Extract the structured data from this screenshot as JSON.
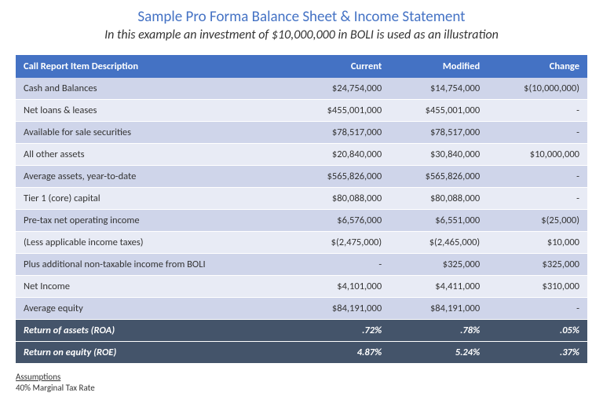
{
  "title": "Sample Pro Forma Balance Sheet & Income Statement",
  "subtitle": "In this example an investment of $10,000,000 in BOLI is used as an illustration",
  "colors": {
    "title_color": "#4472c4",
    "header_bg": "#4472c4",
    "header_text": "#ffffff",
    "band_a": "#cfd5ea",
    "band_b": "#e8ebf5",
    "emph_bg": "#44546a",
    "emph_text": "#ffffff",
    "body_text": "#333333",
    "page_bg": "#ffffff"
  },
  "typography": {
    "title_fontsize": 19,
    "subtitle_fontsize": 16,
    "table_fontsize": 12.5,
    "footnote_fontsize": 11,
    "font_family": "Calibri"
  },
  "table": {
    "type": "table",
    "columns": [
      "Call Report Item Description",
      "Current",
      "Modified",
      "Change"
    ],
    "column_align": [
      "left",
      "right",
      "right",
      "right"
    ],
    "rows": [
      {
        "cells": [
          "Cash and Balances",
          "$24,754,000",
          "$14,754,000",
          "$(10,000,000)"
        ],
        "band": "a"
      },
      {
        "cells": [
          "Net loans & leases",
          "$455,001,000",
          "$455,001,000",
          "-"
        ],
        "band": "b"
      },
      {
        "cells": [
          "Available for sale securities",
          "$78,517,000",
          "$78,517,000",
          "-"
        ],
        "band": "a"
      },
      {
        "cells": [
          "All other assets",
          "$20,840,000",
          "$30,840,000",
          "$10,000,000"
        ],
        "band": "b"
      },
      {
        "cells": [
          "Average assets, year-to-date",
          "$565,826,000",
          "$565,826,000",
          "-"
        ],
        "band": "a"
      },
      {
        "cells": [
          "Tier 1 (core) capital",
          "$80,088,000",
          "$80,088,000",
          "-"
        ],
        "band": "b"
      },
      {
        "cells": [
          "Pre-tax net operating income",
          "$6,576,000",
          "$6,551,000",
          "$(25,000)"
        ],
        "band": "a"
      },
      {
        "cells": [
          "(Less applicable income taxes)",
          "$(2,475,000)",
          "$(2,465,000)",
          "$10,000"
        ],
        "band": "b"
      },
      {
        "cells": [
          "Plus additional non-taxable income from BOLI",
          "-",
          "$325,000",
          "$325,000"
        ],
        "band": "a"
      },
      {
        "cells": [
          "Net Income",
          "$4,101,000",
          "$4,411,000",
          "$310,000"
        ],
        "band": "b"
      },
      {
        "cells": [
          "Average equity",
          "$84,191,000",
          "$84,191,000",
          "-"
        ],
        "band": "a"
      },
      {
        "cells": [
          "Return of assets (ROA)",
          ".72%",
          ".78%",
          ".05%"
        ],
        "band": "emph"
      },
      {
        "cells": [
          "Return on equity (ROE)",
          "4.87%",
          "5.24%",
          ".37%"
        ],
        "band": "emph"
      }
    ]
  },
  "footnote": {
    "heading": "Assumptions",
    "line1": "40% Marginal Tax Rate"
  }
}
